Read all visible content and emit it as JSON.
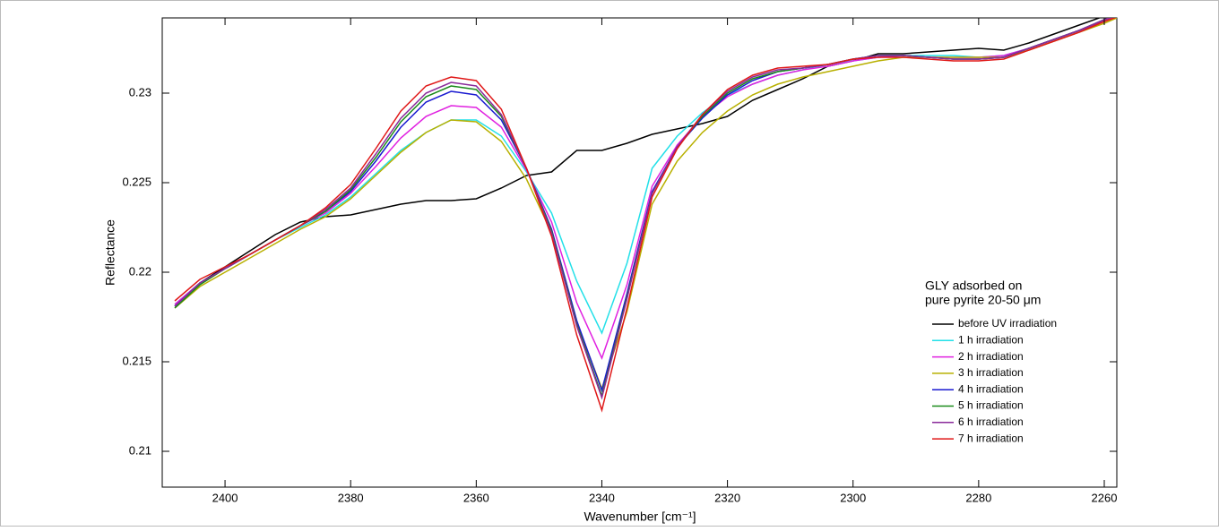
{
  "chart_data": {
    "type": "line",
    "xlabel": "Wavenumber [cm⁻¹]",
    "ylabel": "Reflectance",
    "legend_title": [
      "GLY adsorbed on",
      "pure pyrite 20-50 μm"
    ],
    "legend_position": "right",
    "x": [
      2408,
      2404,
      2400,
      2396,
      2392,
      2388,
      2384,
      2380,
      2376,
      2372,
      2368,
      2364,
      2360,
      2356,
      2352,
      2348,
      2344,
      2340,
      2336,
      2332,
      2328,
      2324,
      2320,
      2316,
      2312,
      2308,
      2304,
      2300,
      2296,
      2292,
      2288,
      2284,
      2280,
      2276,
      2272,
      2268,
      2264,
      2260,
      2256
    ],
    "xlim": [
      2410,
      2258
    ],
    "xticks": [
      2400,
      2380,
      2360,
      2340,
      2320,
      2300,
      2280,
      2260
    ],
    "ylim": [
      0.208,
      0.2342
    ],
    "yticks": [
      0.21,
      0.215,
      0.22,
      0.225,
      0.23
    ],
    "series": [
      {
        "name": "before UV irradiation",
        "color": "#000000",
        "values": [
          0.2181,
          0.2194,
          0.2203,
          0.2212,
          0.2221,
          0.2228,
          0.2231,
          0.2232,
          0.2235,
          0.2238,
          0.224,
          0.224,
          0.2241,
          0.2247,
          0.2254,
          0.2256,
          0.2268,
          0.2268,
          0.2272,
          0.2277,
          0.228,
          0.2283,
          0.2287,
          0.2296,
          0.2302,
          0.2308,
          0.2315,
          0.2318,
          0.2322,
          0.2322,
          0.2323,
          0.2324,
          0.2325,
          0.2324,
          0.2328,
          0.2333,
          0.2338,
          0.2343,
          0.2348
        ]
      },
      {
        "name": "1 h irradiation",
        "color": "#22e0e8",
        "values": [
          0.2182,
          0.2194,
          0.2202,
          0.221,
          0.2218,
          0.2225,
          0.2232,
          0.2242,
          0.2255,
          0.2268,
          0.2278,
          0.2285,
          0.2285,
          0.2276,
          0.2256,
          0.2233,
          0.2195,
          0.2166,
          0.2205,
          0.2258,
          0.2276,
          0.2289,
          0.2299,
          0.2305,
          0.231,
          0.2313,
          0.2316,
          0.2318,
          0.232,
          0.2321,
          0.2321,
          0.2321,
          0.232,
          0.2321,
          0.2325,
          0.233,
          0.2335,
          0.234,
          0.2346
        ]
      },
      {
        "name": "2 h irradiation",
        "color": "#e020e0",
        "values": [
          0.2182,
          0.2194,
          0.2202,
          0.221,
          0.2218,
          0.2226,
          0.2233,
          0.2244,
          0.2259,
          0.2275,
          0.2287,
          0.2293,
          0.2292,
          0.2281,
          0.2257,
          0.2228,
          0.2183,
          0.2152,
          0.2193,
          0.2248,
          0.2271,
          0.2287,
          0.2298,
          0.2305,
          0.231,
          0.2313,
          0.2315,
          0.2318,
          0.232,
          0.2321,
          0.232,
          0.232,
          0.232,
          0.2321,
          0.2325,
          0.233,
          0.2335,
          0.234,
          0.2346
        ]
      },
      {
        "name": "3 h irradiation",
        "color": "#b8b000",
        "values": [
          0.218,
          0.2192,
          0.22,
          0.2208,
          0.2216,
          0.2224,
          0.2231,
          0.2241,
          0.2254,
          0.2267,
          0.2278,
          0.2285,
          0.2284,
          0.2273,
          0.2252,
          0.2222,
          0.2172,
          0.2135,
          0.2178,
          0.2238,
          0.2262,
          0.2278,
          0.229,
          0.2299,
          0.2305,
          0.2309,
          0.2312,
          0.2315,
          0.2318,
          0.232,
          0.232,
          0.232,
          0.232,
          0.232,
          0.2324,
          0.2329,
          0.2334,
          0.2339,
          0.2345
        ]
      },
      {
        "name": "4 h irradiation",
        "color": "#1a1ad0",
        "values": [
          0.2181,
          0.2194,
          0.2202,
          0.221,
          0.2218,
          0.2226,
          0.2234,
          0.2245,
          0.2262,
          0.2281,
          0.2295,
          0.2301,
          0.2299,
          0.2285,
          0.2258,
          0.2224,
          0.2173,
          0.2134,
          0.2188,
          0.2245,
          0.227,
          0.2286,
          0.2299,
          0.2307,
          0.2312,
          0.2314,
          0.2316,
          0.2319,
          0.2321,
          0.2321,
          0.232,
          0.2319,
          0.2319,
          0.232,
          0.2325,
          0.233,
          0.2335,
          0.2341,
          0.2346
        ]
      },
      {
        "name": "5 h irradiation",
        "color": "#1a8a1a",
        "values": [
          0.218,
          0.2193,
          0.2202,
          0.221,
          0.2218,
          0.2226,
          0.2234,
          0.2246,
          0.2264,
          0.2284,
          0.2298,
          0.2304,
          0.2302,
          0.2287,
          0.2258,
          0.2223,
          0.2171,
          0.2131,
          0.2186,
          0.2244,
          0.227,
          0.2287,
          0.23,
          0.2308,
          0.2312,
          0.2314,
          0.2316,
          0.2319,
          0.2321,
          0.2321,
          0.232,
          0.2319,
          0.2319,
          0.232,
          0.2325,
          0.233,
          0.2335,
          0.2341,
          0.2346
        ]
      },
      {
        "name": "6 h irradiation",
        "color": "#8a2a9a",
        "values": [
          0.2181,
          0.2194,
          0.2202,
          0.221,
          0.2218,
          0.2226,
          0.2235,
          0.2247,
          0.2266,
          0.2286,
          0.23,
          0.2306,
          0.2304,
          0.2288,
          0.2258,
          0.2222,
          0.217,
          0.213,
          0.2185,
          0.2244,
          0.227,
          0.2288,
          0.2301,
          0.2309,
          0.2313,
          0.2314,
          0.2316,
          0.2319,
          0.2321,
          0.2321,
          0.232,
          0.2319,
          0.2319,
          0.232,
          0.2325,
          0.233,
          0.2335,
          0.2341,
          0.2346
        ]
      },
      {
        "name": "7 h irradiation",
        "color": "#e01818",
        "values": [
          0.2184,
          0.2196,
          0.2203,
          0.221,
          0.2218,
          0.2226,
          0.2236,
          0.2249,
          0.2269,
          0.229,
          0.2304,
          0.2309,
          0.2307,
          0.2291,
          0.2258,
          0.222,
          0.2165,
          0.2123,
          0.218,
          0.2242,
          0.2269,
          0.2288,
          0.2302,
          0.231,
          0.2314,
          0.2315,
          0.2316,
          0.2319,
          0.232,
          0.232,
          0.2319,
          0.2318,
          0.2318,
          0.2319,
          0.2324,
          0.2329,
          0.2334,
          0.234,
          0.2345
        ]
      }
    ]
  }
}
